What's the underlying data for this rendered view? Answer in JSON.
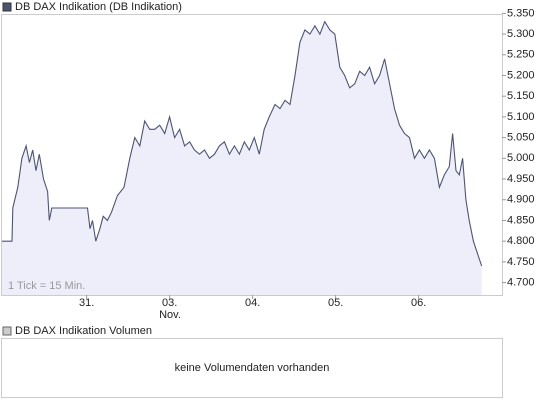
{
  "chart_data": [
    {
      "type": "line",
      "title": "DB DAX Indikation (DB Indikation)",
      "annotation": "1 Tick = 15 Min.",
      "month_label": "Nov.",
      "color": "#4d5470",
      "fill": "#eeeefa",
      "grid": false,
      "x": [
        -1.02,
        -0.9,
        -0.89,
        -0.83,
        -0.78,
        -0.73,
        -0.69,
        -0.65,
        -0.61,
        -0.57,
        -0.52,
        -0.47,
        -0.45,
        -0.42,
        -0.33,
        -0.08,
        0.01,
        0.04,
        0.07,
        0.11,
        0.16,
        0.2,
        0.25,
        0.3,
        0.37,
        0.45,
        0.52,
        0.58,
        0.64,
        0.7,
        0.76,
        0.82,
        0.88,
        0.94,
        1.0,
        1.06,
        1.12,
        1.18,
        1.24,
        1.3,
        1.36,
        1.42,
        1.48,
        1.54,
        1.6,
        1.66,
        1.72,
        1.78,
        1.84,
        1.9,
        1.96,
        2.02,
        2.08,
        2.14,
        2.2,
        2.27,
        2.33,
        2.39,
        2.45,
        2.51,
        2.57,
        2.63,
        2.69,
        2.75,
        2.81,
        2.87,
        2.93,
        2.99,
        3.05,
        3.11,
        3.17,
        3.23,
        3.29,
        3.35,
        3.41,
        3.47,
        3.53,
        3.59,
        3.65,
        3.71,
        3.77,
        3.83,
        3.89,
        3.95,
        4.01,
        4.07,
        4.13,
        4.19,
        4.25,
        4.31,
        4.37,
        4.41,
        4.45,
        4.49,
        4.53,
        4.57,
        4.61,
        4.66,
        4.71,
        4.76
      ],
      "values": [
        4.8,
        4.8,
        4.88,
        4.93,
        5.0,
        5.03,
        4.99,
        5.02,
        4.97,
        5.01,
        4.95,
        4.92,
        4.85,
        4.88,
        4.88,
        4.88,
        4.88,
        4.83,
        4.85,
        4.8,
        4.83,
        4.86,
        4.85,
        4.87,
        4.91,
        4.93,
        5.0,
        5.05,
        5.03,
        5.09,
        5.07,
        5.07,
        5.08,
        5.06,
        5.1,
        5.05,
        5.07,
        5.03,
        5.04,
        5.02,
        5.01,
        5.02,
        5.0,
        5.01,
        5.03,
        5.04,
        5.01,
        5.03,
        5.01,
        5.04,
        5.02,
        5.05,
        5.01,
        5.07,
        5.1,
        5.13,
        5.12,
        5.14,
        5.13,
        5.2,
        5.28,
        5.31,
        5.3,
        5.32,
        5.3,
        5.33,
        5.31,
        5.3,
        5.22,
        5.2,
        5.17,
        5.18,
        5.21,
        5.2,
        5.22,
        5.18,
        5.2,
        5.24,
        5.18,
        5.12,
        5.08,
        5.06,
        5.05,
        5.0,
        5.02,
        5.0,
        5.02,
        5.0,
        4.93,
        4.96,
        4.98,
        5.06,
        4.97,
        4.96,
        5.0,
        4.9,
        4.85,
        4.8,
        4.77,
        4.74
      ],
      "xlim": [
        -1.02,
        4.8
      ],
      "xticks": [
        {
          "value": 0,
          "label": "31."
        },
        {
          "value": 1,
          "label": "03."
        },
        {
          "value": 2,
          "label": "04."
        },
        {
          "value": 3,
          "label": "05."
        },
        {
          "value": 4,
          "label": "06."
        }
      ],
      "ylim": [
        4.67,
        5.375
      ],
      "yticks": [
        {
          "value": 4.7,
          "label": "4.700"
        },
        {
          "value": 4.75,
          "label": "4.750"
        },
        {
          "value": 4.8,
          "label": "4.800"
        },
        {
          "value": 4.85,
          "label": "4.850"
        },
        {
          "value": 4.9,
          "label": "4.900"
        },
        {
          "value": 4.95,
          "label": "4.950"
        },
        {
          "value": 5.0,
          "label": "5.000"
        },
        {
          "value": 5.05,
          "label": "5.050"
        },
        {
          "value": 5.1,
          "label": "5.100"
        },
        {
          "value": 5.15,
          "label": "5.150"
        },
        {
          "value": 5.2,
          "label": "5.200"
        },
        {
          "value": 5.25,
          "label": "5.250"
        },
        {
          "value": 5.3,
          "label": "5.300"
        },
        {
          "value": 5.35,
          "label": "5.350"
        }
      ]
    },
    {
      "type": "bar",
      "title": "DB DAX Indikation Volumen",
      "message": "keine Volumendaten vorhanden"
    }
  ]
}
